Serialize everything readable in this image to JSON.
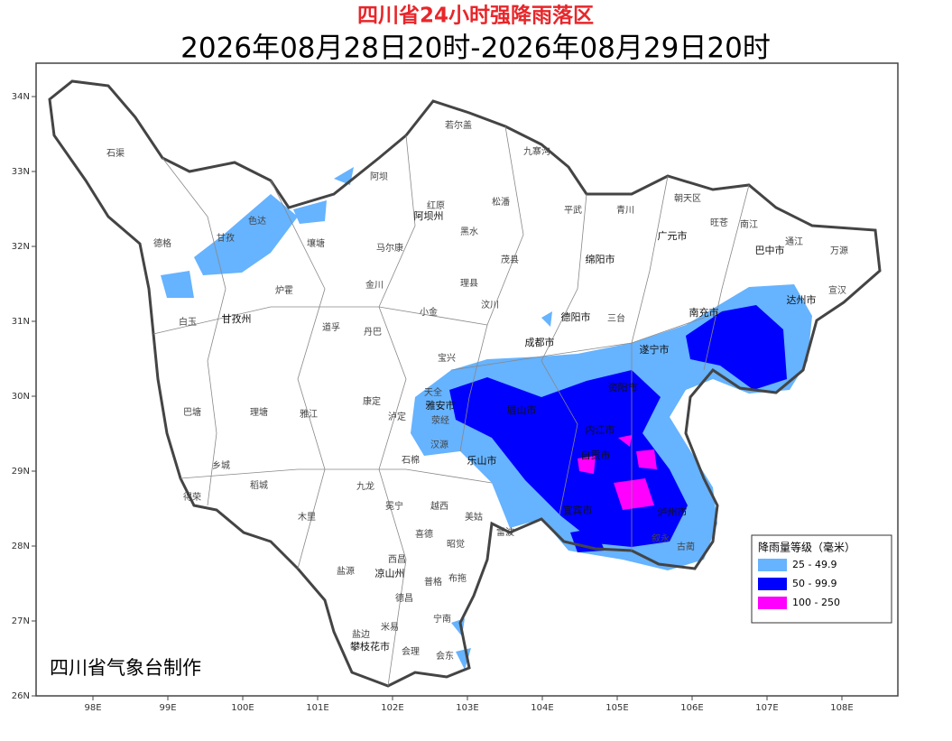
{
  "header": {
    "title": "四川省24小时强降雨落区",
    "subtitle": "2026年08月28日20时-2026年08月29日20时"
  },
  "credit": "四川省气象台制作",
  "legend": {
    "title": "降雨量等级（毫米）",
    "items": [
      {
        "label": "25 - 49.9",
        "color": "#66b3ff"
      },
      {
        "label": "50 - 99.9",
        "color": "#0000ff"
      },
      {
        "label": "100 - 250",
        "color": "#ff00ff"
      }
    ]
  },
  "xticks": [
    {
      "value": 98,
      "label": "98E"
    },
    {
      "value": 99,
      "label": "99E"
    },
    {
      "value": 100,
      "label": "100E"
    },
    {
      "value": 101,
      "label": "101E"
    },
    {
      "value": 102,
      "label": "102E"
    },
    {
      "value": 103,
      "label": "103E"
    },
    {
      "value": 104,
      "label": "104E"
    },
    {
      "value": 105,
      "label": "105E"
    },
    {
      "value": 106,
      "label": "106E"
    },
    {
      "value": 107,
      "label": "107E"
    },
    {
      "value": 108,
      "label": "108E"
    }
  ],
  "yticks": [
    {
      "value": 26,
      "label": "26N"
    },
    {
      "value": 27,
      "label": "27N"
    },
    {
      "value": 28,
      "label": "28N"
    },
    {
      "value": 29,
      "label": "29N"
    },
    {
      "value": 30,
      "label": "30N"
    },
    {
      "value": 31,
      "label": "31N"
    },
    {
      "value": 32,
      "label": "32N"
    },
    {
      "value": 33,
      "label": "33N"
    },
    {
      "value": 34,
      "label": "34N"
    }
  ],
  "places": [
    "石渠",
    "德格",
    "白玉",
    "巴塘",
    "乡城",
    "得荣",
    "稻城",
    "理塘",
    "甘孜州",
    "甘孜",
    "色达",
    "炉霍",
    "壤塘",
    "阿坝",
    "若尔盖",
    "九寨沟",
    "红原",
    "阿坝州",
    "松潘",
    "黑水",
    "马尔康",
    "金川",
    "小金",
    "理县",
    "茂县",
    "汶川",
    "平武",
    "青川",
    "广元市",
    "朝天区",
    "旺苍",
    "南江",
    "巴中市",
    "通江",
    "万源",
    "宣汉",
    "达州市",
    "绵阳市",
    "德阳市",
    "成都市",
    "三台",
    "南充市",
    "遂宁市",
    "资阳市",
    "雅安市",
    "眉山市",
    "乐山市",
    "内江市",
    "自贡市",
    "宜宾市",
    "泸州市",
    "康定",
    "泸定",
    "九龙",
    "木里",
    "冕宁",
    "越西",
    "美姑",
    "雷波",
    "喜德",
    "昭觉",
    "西昌",
    "凉山州",
    "盐源",
    "普格",
    "布拖",
    "德昌",
    "米易",
    "宁南",
    "会理",
    "会东",
    "攀枝花市",
    "盐边",
    "雅江",
    "道孚",
    "丹巴",
    "宝兴",
    "天全",
    "荥经",
    "汉源",
    "石棉",
    "古蔺",
    "叙永"
  ]
}
